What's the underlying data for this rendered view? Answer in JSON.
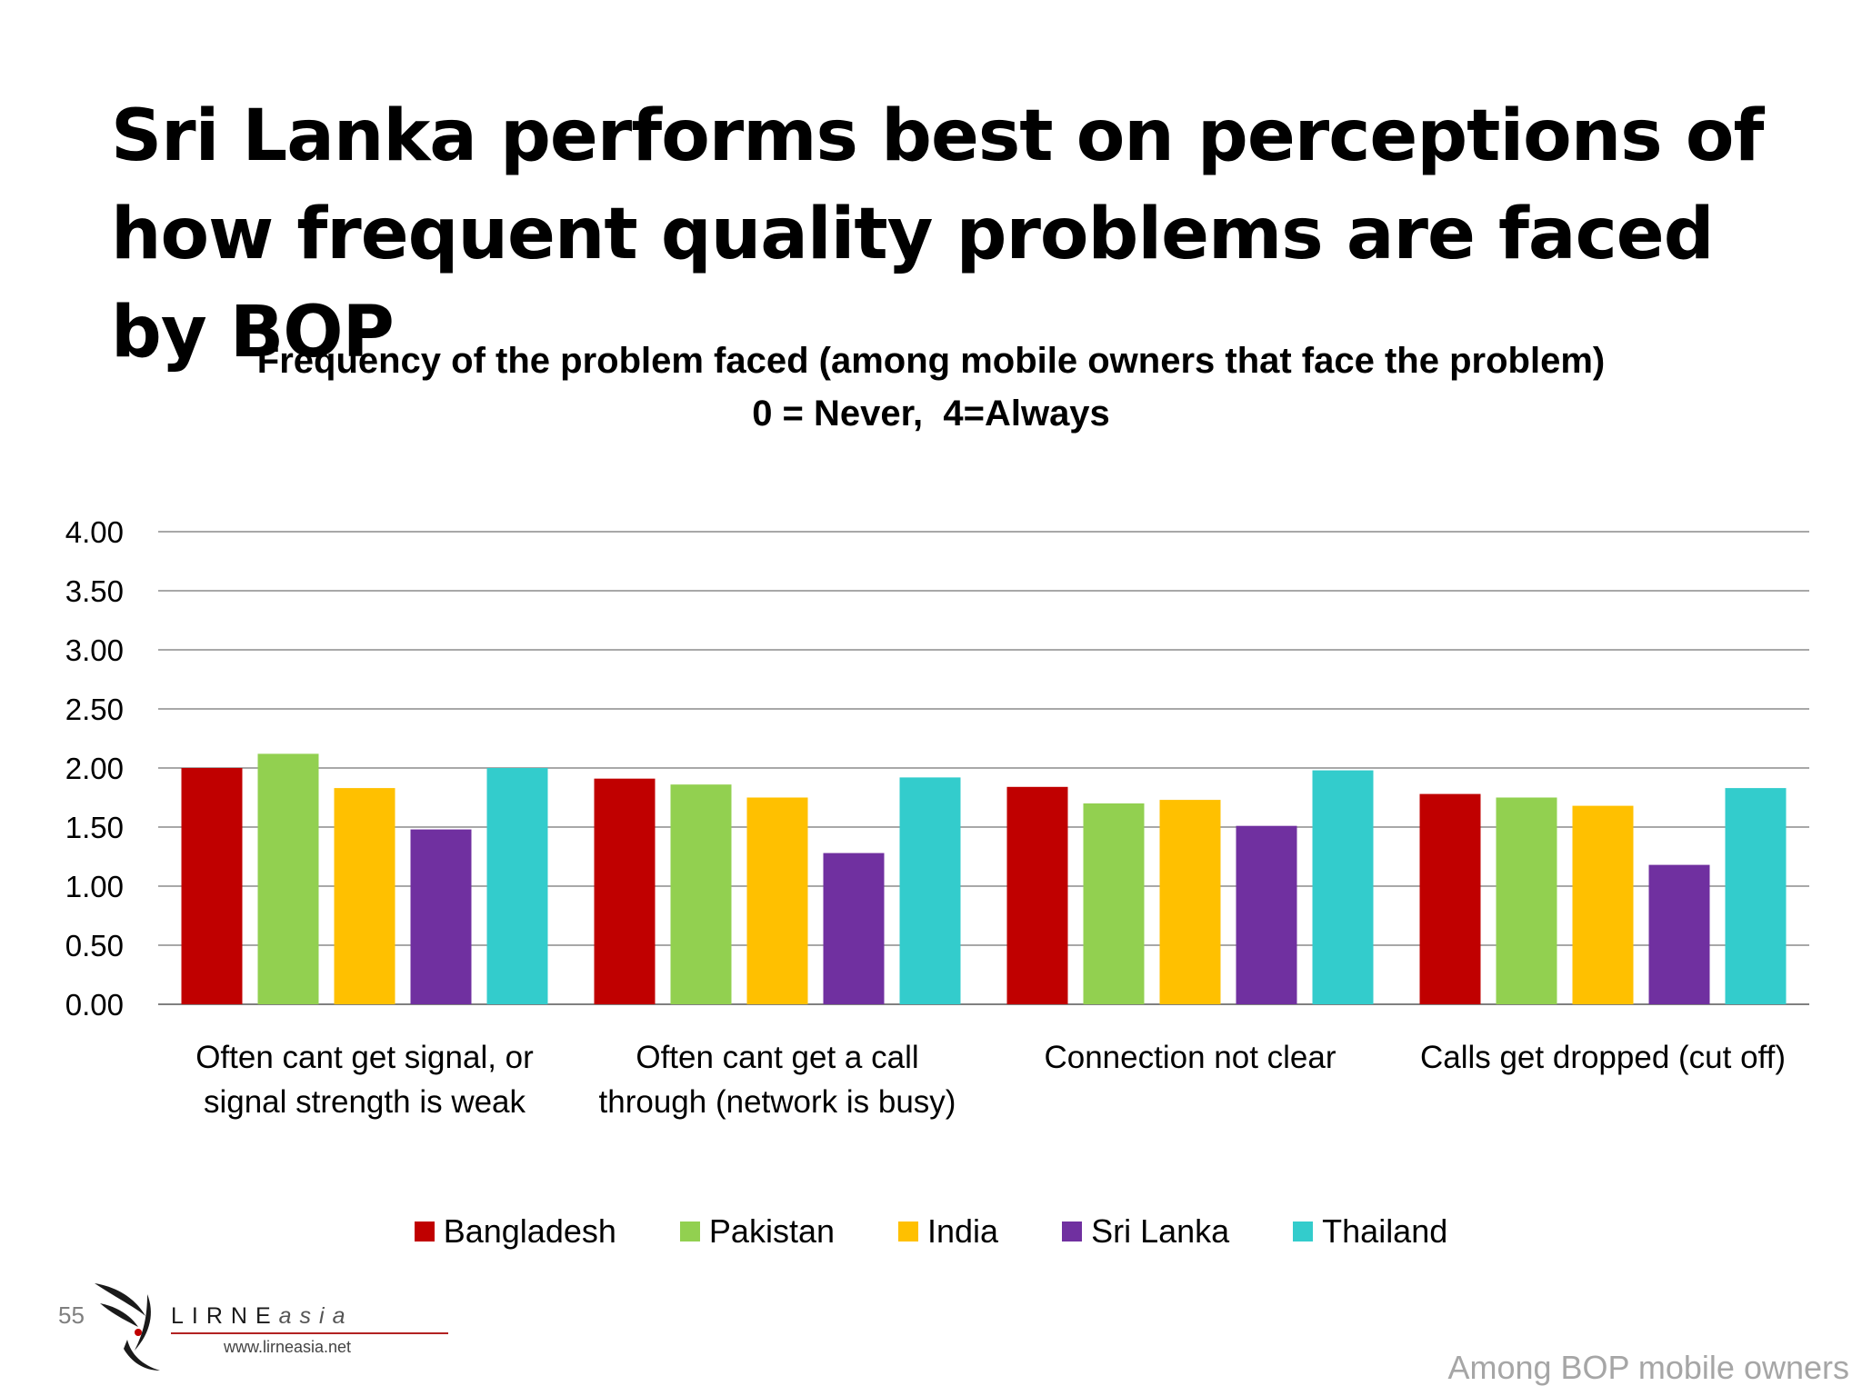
{
  "slide": {
    "title": "Sri Lanka performs best on perceptions of how frequent quality problems are faced by BOP",
    "page_number": "55",
    "footnote": "Among BOP mobile owners",
    "logo": {
      "word_main": "LIRNE",
      "word_accent": "asia",
      "url": "www.lirneasia.net"
    }
  },
  "chart_data": {
    "type": "bar",
    "title_lines": [
      "Frequency of the problem faced (among mobile owners that face the problem)",
      "0 = Never,  4=Always"
    ],
    "categories": [
      [
        "Often cant get signal, or",
        "signal strength is weak"
      ],
      [
        "Often cant get a call",
        "through (network is busy)"
      ],
      [
        "Connection not clear"
      ],
      [
        "Calls get dropped (cut off)"
      ]
    ],
    "series": [
      {
        "name": "Bangladesh",
        "color": "#c00000",
        "values": [
          2.0,
          1.91,
          1.84,
          1.78
        ]
      },
      {
        "name": "Pakistan",
        "color": "#92d050",
        "values": [
          2.12,
          1.86,
          1.7,
          1.75
        ]
      },
      {
        "name": "India",
        "color": "#ffc000",
        "values": [
          1.83,
          1.75,
          1.73,
          1.68
        ]
      },
      {
        "name": "Sri Lanka",
        "color": "#7030a0",
        "values": [
          1.48,
          1.28,
          1.51,
          1.18
        ]
      },
      {
        "name": "Thailand",
        "color": "#33cccc",
        "values": [
          2.0,
          1.92,
          1.98,
          1.83
        ]
      }
    ],
    "ylim": [
      0,
      4
    ],
    "yticks": [
      "0.00",
      "0.50",
      "1.00",
      "1.50",
      "2.00",
      "2.50",
      "3.00",
      "3.50",
      "4.00"
    ],
    "grid": true,
    "legend_position": "bottom"
  }
}
